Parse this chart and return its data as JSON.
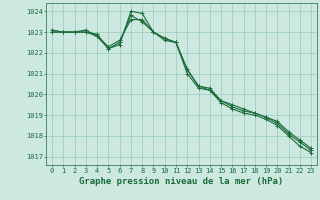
{
  "background_color": "#cce8e0",
  "grid_color": "#99ccbb",
  "line_color": "#1a6b3a",
  "xlabel": "Graphe pression niveau de la mer (hPa)",
  "xlabel_fontsize": 6.5,
  "xlabel_bold": true,
  "ylim": [
    1016.6,
    1024.4
  ],
  "xlim": [
    -0.5,
    23.5
  ],
  "yticks": [
    1017,
    1018,
    1019,
    1020,
    1021,
    1022,
    1023,
    1024
  ],
  "xticks": [
    0,
    1,
    2,
    3,
    4,
    5,
    6,
    7,
    8,
    9,
    10,
    11,
    12,
    13,
    14,
    15,
    16,
    17,
    18,
    19,
    20,
    21,
    22,
    23
  ],
  "series": [
    [
      1023.0,
      1023.0,
      1023.0,
      1023.0,
      1022.8,
      1022.2,
      1022.5,
      1023.8,
      1023.5,
      1023.0,
      1022.6,
      1022.5,
      1021.0,
      1020.3,
      1020.2,
      1019.6,
      1019.3,
      1019.1,
      1019.0,
      1018.8,
      1018.5,
      1018.0,
      1017.5,
      1017.2
    ],
    [
      1023.1,
      1023.0,
      1023.0,
      1023.1,
      1022.8,
      1022.3,
      1022.6,
      1023.6,
      1023.6,
      1023.0,
      1022.7,
      1022.5,
      1021.2,
      1020.4,
      1020.2,
      1019.7,
      1019.4,
      1019.2,
      1019.1,
      1018.9,
      1018.6,
      1018.1,
      1017.7,
      1017.3
    ],
    [
      1023.0,
      1023.0,
      1023.0,
      1023.0,
      1022.9,
      1022.2,
      1022.4,
      1024.0,
      1023.9,
      1023.0,
      1022.7,
      1022.5,
      1021.2,
      1020.4,
      1020.3,
      1019.7,
      1019.5,
      1019.3,
      1019.1,
      1018.9,
      1018.7,
      1018.2,
      1017.8,
      1017.4
    ]
  ],
  "marker": "+",
  "marker_size": 3,
  "line_width": 0.8,
  "tick_fontsize": 5.0,
  "tick_color": "#1a6b3a",
  "axis_color": "#1a6b3a"
}
